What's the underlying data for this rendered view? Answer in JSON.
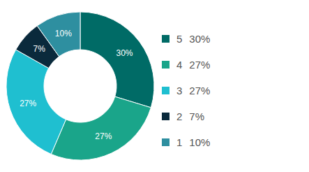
{
  "chart_data": {
    "type": "pie",
    "categories": [
      "5",
      "4",
      "3",
      "2",
      "1"
    ],
    "values": [
      30,
      27,
      27,
      7,
      10
    ],
    "value_labels": [
      "30%",
      "27%",
      "27%",
      "7%",
      "10%"
    ],
    "colors": [
      "#006b66",
      "#1aa58a",
      "#1fbfd0",
      "#0a2a3c",
      "#2e8fa0"
    ],
    "data_labels": true,
    "legend": "right"
  }
}
